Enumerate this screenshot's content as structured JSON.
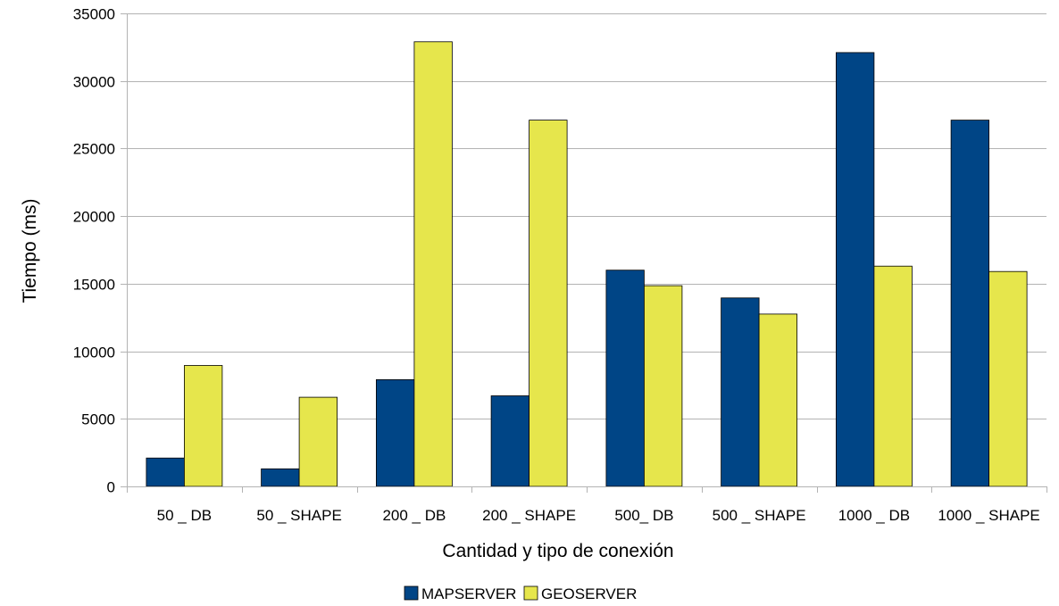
{
  "chart_data": {
    "type": "bar",
    "title": "",
    "xlabel": "Cantidad y tipo de conexión",
    "ylabel": "Tiempo (ms)",
    "categories": [
      "50 _ DB",
      "50 _ SHAPE",
      "200 _ DB",
      "200 _ SHAPE",
      "500_ DB",
      "500 _ SHAPE",
      "1000 _ DB",
      "1000 _ SHAPE"
    ],
    "series": [
      {
        "name": "MAPSERVER",
        "color": "#004586",
        "values": [
          2100,
          1300,
          7900,
          6700,
          16000,
          13950,
          32100,
          27100
        ]
      },
      {
        "name": "GEOSERVER",
        "color": "#e6e64c",
        "values": [
          8950,
          6600,
          32900,
          27100,
          14850,
          12750,
          16300,
          15900
        ]
      }
    ],
    "ylim": [
      0,
      35000
    ],
    "yticks": [
      0,
      5000,
      10000,
      15000,
      20000,
      25000,
      30000,
      35000
    ],
    "grid": true,
    "legend_position": "bottom"
  }
}
